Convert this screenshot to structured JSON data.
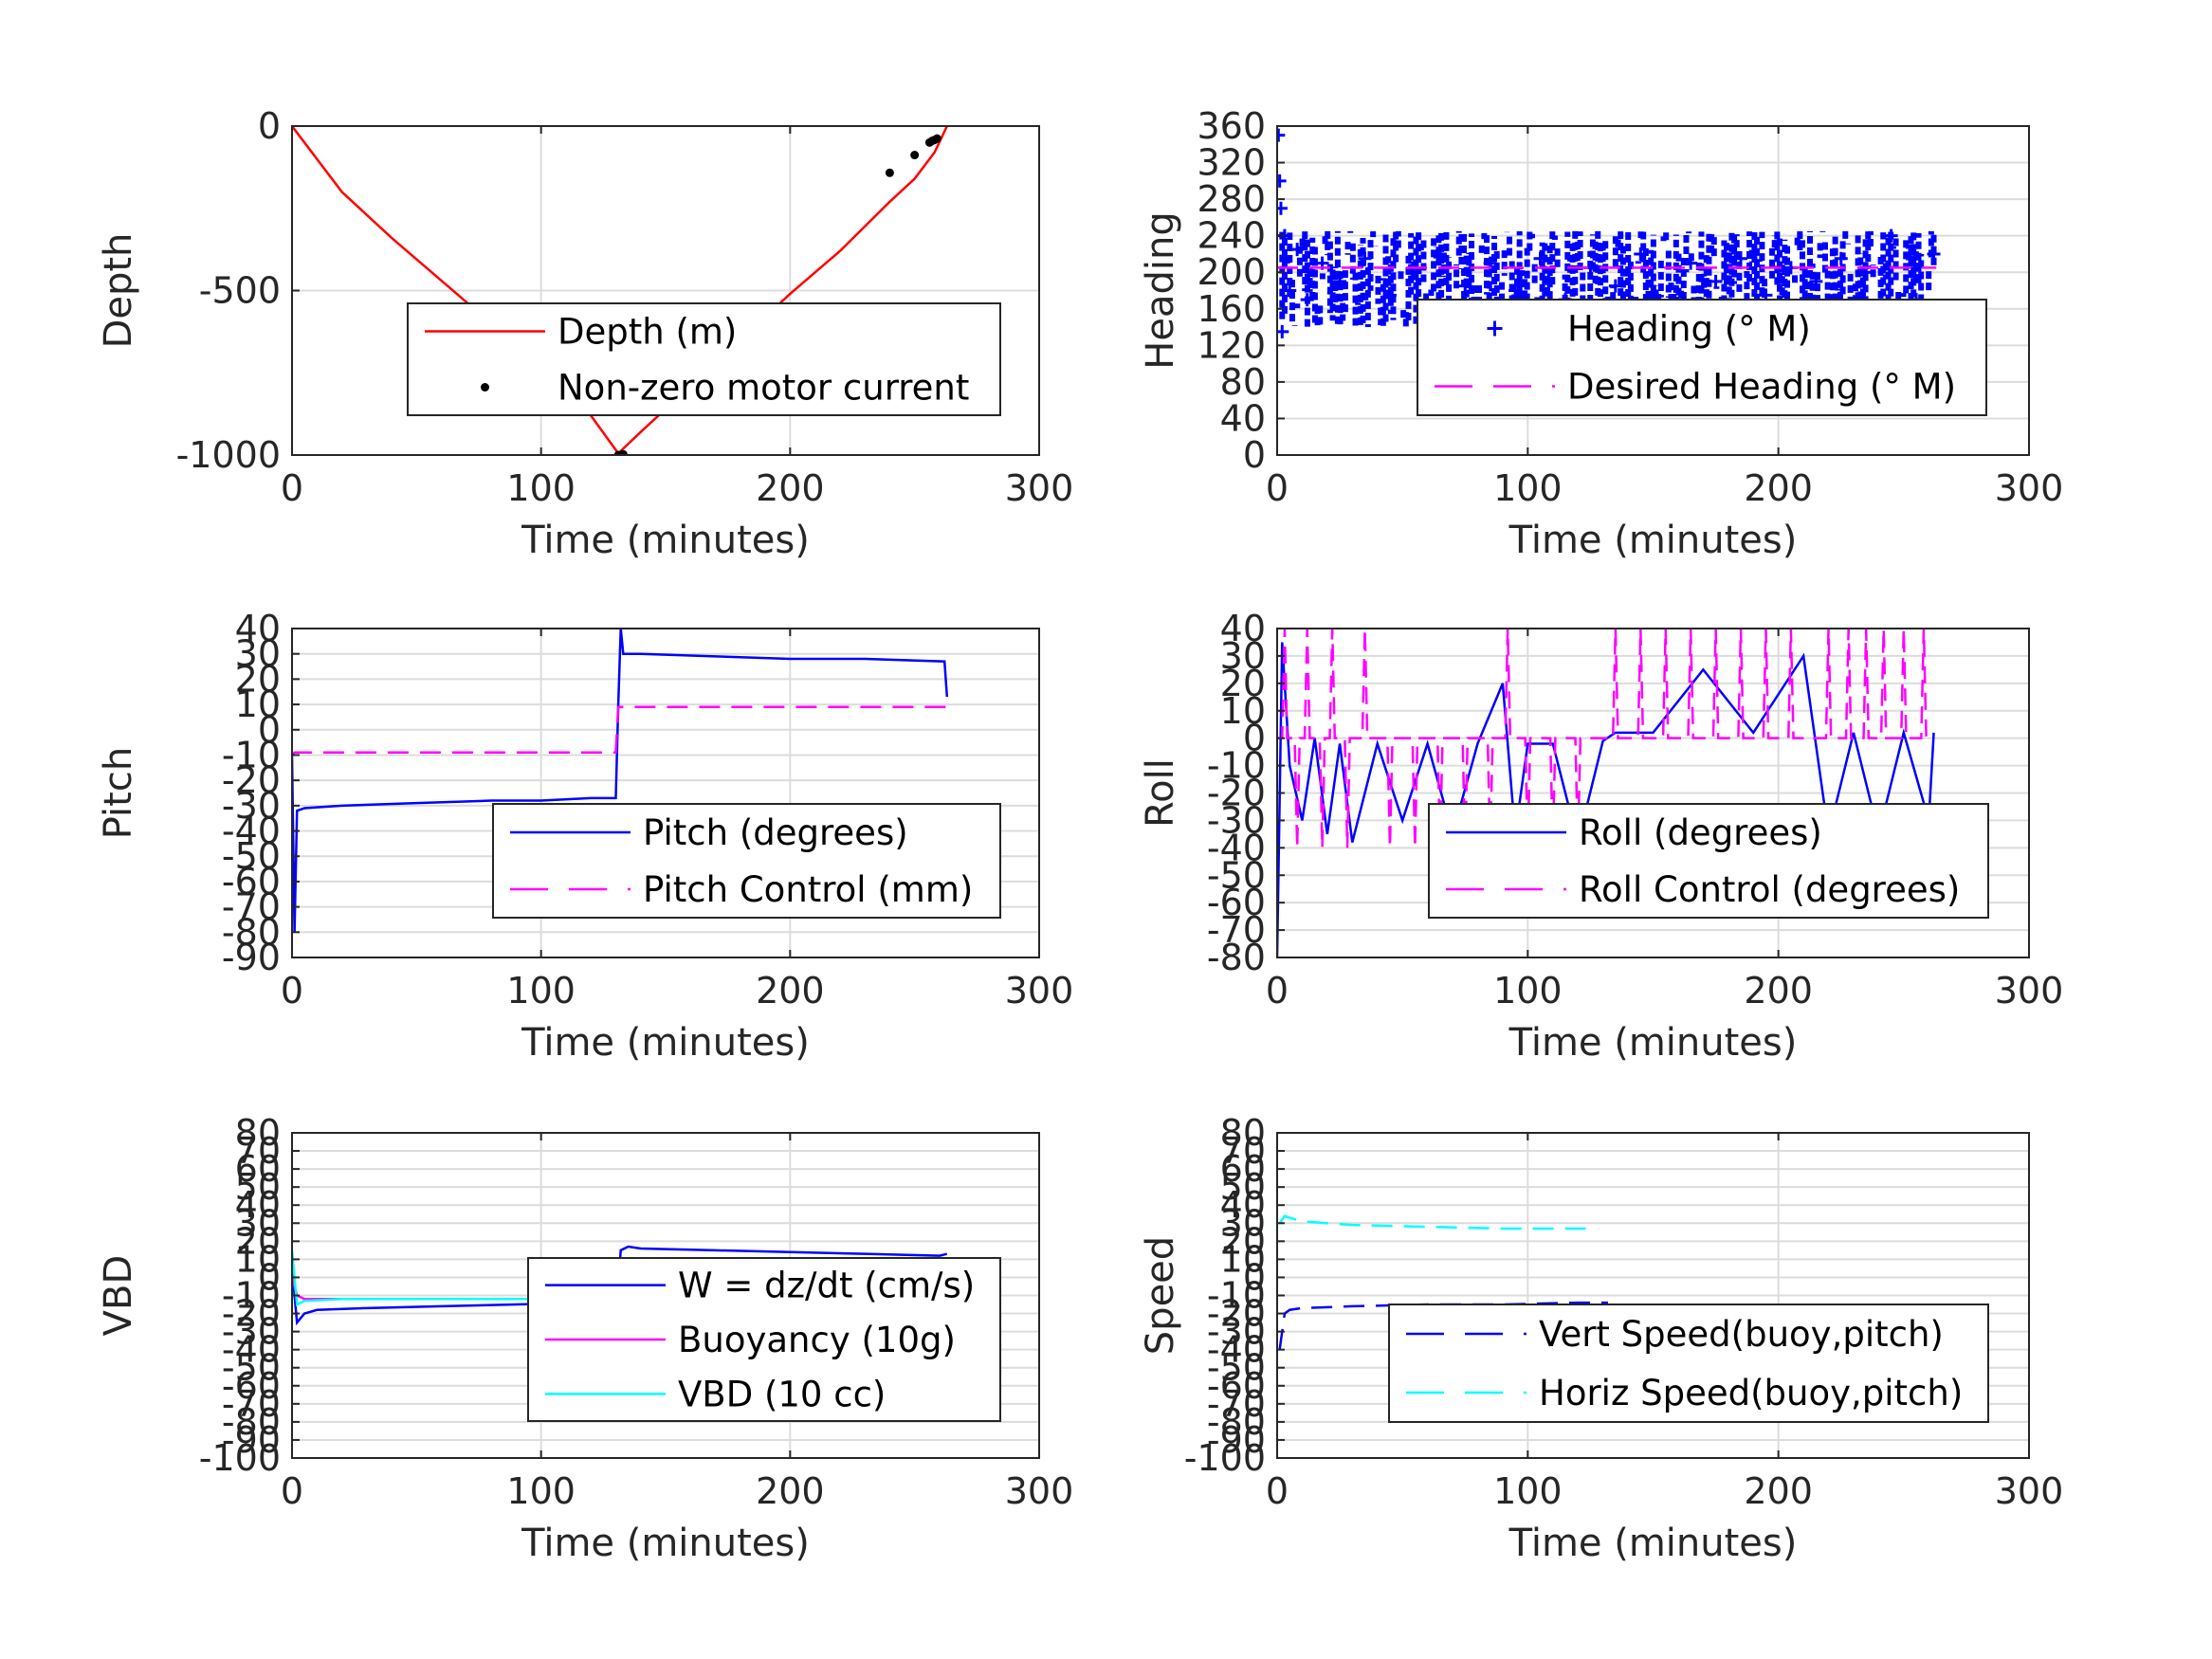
{
  "colors": {
    "depth": "#ff0000",
    "motor": "#000000",
    "heading": "#0000ff",
    "desired": "#ff00ff",
    "pitch": "#0000ff",
    "pitch_control": "#ff00ff",
    "roll": "#0000ff",
    "roll_control": "#ff00ff",
    "w": "#0000ff",
    "buoyancy": "#ff00ff",
    "vbd": "#00ffff",
    "vert_speed": "#0000ff",
    "horiz_speed": "#00ffff",
    "grid": "#dcdcdc",
    "axis": "#262626"
  },
  "chart_data": [
    {
      "id": "depth",
      "type": "line",
      "xlabel": "Time (minutes)",
      "ylabel": "Depth",
      "xlim": [
        0,
        300
      ],
      "ylim": [
        -1000,
        0
      ],
      "xticks": [
        "0",
        "100",
        "200",
        "300"
      ],
      "yticks": [
        "0",
        "-500",
        "-1000"
      ],
      "ytick_values": [
        0,
        -500,
        -1000
      ],
      "grid": true,
      "legend_position": "center-right",
      "legend": [
        "Depth (m)",
        "Non-zero motor current"
      ],
      "series": [
        {
          "name": "Depth (m)",
          "style": "solid",
          "color_key": "depth",
          "x": [
            0,
            20,
            40,
            60,
            80,
            100,
            120,
            131,
            140,
            160,
            180,
            200,
            220,
            240,
            250,
            258,
            263
          ],
          "y": [
            0,
            -200,
            -340,
            -470,
            -600,
            -730,
            -880,
            -995,
            -930,
            -790,
            -650,
            -510,
            -380,
            -230,
            -160,
            -80,
            0
          ]
        },
        {
          "name": "Non-zero motor current",
          "style": "points",
          "color_key": "motor",
          "x": [
            131,
            132,
            133,
            240,
            250,
            256,
            257,
            258,
            259
          ],
          "y": [
            -1000,
            -1000,
            -998,
            -142,
            -88,
            -50,
            -45,
            -42,
            -38
          ]
        }
      ]
    },
    {
      "id": "heading",
      "type": "scatter",
      "xlabel": "Time (minutes)",
      "ylabel": "Heading",
      "xlim": [
        0,
        300
      ],
      "ylim": [
        0,
        360
      ],
      "xticks": [
        "0",
        "100",
        "200",
        "300"
      ],
      "yticks": [
        "360",
        "320",
        "280",
        "240",
        "200",
        "160",
        "120",
        "80",
        "40",
        "0"
      ],
      "ytick_values": [
        360,
        320,
        280,
        240,
        200,
        160,
        120,
        80,
        40,
        0
      ],
      "grid": true,
      "legend_position": "lower-right",
      "legend": [
        "Heading (° M)",
        "Desired Heading (° M)"
      ],
      "series": [
        {
          "name": "Heading (° M)",
          "style": "plus",
          "color_key": "heading",
          "x": [
            0.5,
            1,
            1.5,
            2,
            3,
            5,
            8,
            12,
            18,
            25,
            35,
            45,
            55,
            65,
            75,
            85,
            95,
            105,
            115,
            125,
            135,
            145,
            155,
            165,
            175,
            185,
            195,
            205,
            215,
            225,
            235,
            245,
            255,
            262
          ],
          "y": [
            350,
            300,
            270,
            135,
            240,
            180,
            225,
            170,
            210,
            190,
            215,
            175,
            200,
            220,
            185,
            210,
            180,
            215,
            170,
            205,
            185,
            220,
            160,
            210,
            190,
            215,
            175,
            205,
            190,
            215,
            200,
            240,
            170,
            220
          ]
        },
        {
          "name": "Desired Heading (° M)",
          "style": "dashed",
          "color_key": "desired",
          "x": [
            0,
            263
          ],
          "y": [
            205,
            205
          ]
        }
      ],
      "note_range": {
        "min": 140,
        "max": 245
      }
    },
    {
      "id": "pitch",
      "type": "line",
      "xlabel": "Time (minutes)",
      "ylabel": "Pitch",
      "xlim": [
        0,
        300
      ],
      "ylim": [
        -90,
        40
      ],
      "xticks": [
        "0",
        "100",
        "200",
        "300"
      ],
      "yticks": [
        "40",
        "30",
        "20",
        "10",
        "0",
        "-10",
        "-20",
        "-30",
        "-40",
        "-50",
        "-60",
        "-70",
        "-80",
        "-90"
      ],
      "ytick_values": [
        40,
        30,
        20,
        10,
        0,
        -10,
        -20,
        -30,
        -40,
        -50,
        -60,
        -70,
        -80,
        -90
      ],
      "grid": true,
      "legend_position": "lower-right",
      "legend": [
        "Pitch (degrees)",
        "Pitch Control (mm)"
      ],
      "series": [
        {
          "name": "Pitch (degrees)",
          "style": "solid",
          "color_key": "pitch",
          "x": [
            0,
            1,
            2,
            5,
            20,
            50,
            80,
            100,
            120,
            130,
            131,
            132,
            133,
            140,
            170,
            200,
            230,
            262,
            263
          ],
          "y": [
            -10,
            -80,
            -32,
            -31,
            -30,
            -29,
            -28,
            -28,
            -27,
            -27,
            10,
            40,
            30,
            30,
            29,
            28,
            28,
            27,
            13
          ]
        },
        {
          "name": "Pitch Control (mm)",
          "style": "dashed",
          "color_key": "pitch_control",
          "x": [
            0,
            1,
            130,
            131,
            132,
            263
          ],
          "y": [
            -10,
            -9,
            -9,
            9,
            9,
            9
          ]
        }
      ]
    },
    {
      "id": "roll",
      "type": "line",
      "xlabel": "Time (minutes)",
      "ylabel": "Roll",
      "xlim": [
        0,
        300
      ],
      "ylim": [
        -80,
        40
      ],
      "xticks": [
        "0",
        "100",
        "200",
        "300"
      ],
      "yticks": [
        "40",
        "30",
        "20",
        "10",
        "0",
        "-10",
        "-20",
        "-30",
        "-40",
        "-50",
        "-60",
        "-70",
        "-80"
      ],
      "ytick_values": [
        40,
        30,
        20,
        10,
        0,
        -10,
        -20,
        -30,
        -40,
        -50,
        -60,
        -70,
        -80
      ],
      "grid": true,
      "legend_position": "lower-right",
      "legend": [
        "Roll (degrees)",
        "Roll Control (degrees)"
      ],
      "series": [
        {
          "name": "Roll (degrees)",
          "style": "solid",
          "color_key": "roll",
          "x": [
            0,
            2,
            5,
            10,
            15,
            20,
            25,
            30,
            40,
            50,
            60,
            70,
            80,
            90,
            95,
            100,
            110,
            120,
            130,
            135,
            150,
            170,
            190,
            210,
            220,
            230,
            240,
            250,
            260,
            262
          ],
          "y": [
            -80,
            35,
            -10,
            -30,
            0,
            -35,
            -2,
            -38,
            -2,
            -30,
            -2,
            -35,
            -2,
            20,
            -35,
            -2,
            -2,
            -38,
            -1,
            2,
            2,
            25,
            2,
            30,
            -35,
            2,
            -35,
            2,
            -30,
            2
          ]
        },
        {
          "name": "Roll Control (degrees)",
          "style": "dashed",
          "color_key": "roll_control",
          "spikes_x": [
            3,
            8,
            12,
            18,
            22,
            28,
            35,
            45,
            55,
            65,
            75,
            85,
            92,
            100,
            110,
            120,
            135,
            145,
            155,
            165,
            175,
            185,
            195,
            205,
            220,
            228,
            235,
            242,
            250,
            258
          ],
          "spikes_y": [
            40,
            -40,
            40,
            -40,
            40,
            -40,
            40,
            -40,
            -40,
            -40,
            -40,
            -40,
            40,
            -40,
            -40,
            -40,
            40,
            40,
            40,
            40,
            40,
            40,
            40,
            40,
            40,
            40,
            40,
            40,
            40,
            40
          ],
          "baseline": 0
        }
      ]
    },
    {
      "id": "vbd",
      "type": "line",
      "xlabel": "Time (minutes)",
      "ylabel": "VBD",
      "xlim": [
        0,
        300
      ],
      "ylim": [
        -100,
        80
      ],
      "xticks": [
        "0",
        "100",
        "200",
        "300"
      ],
      "yticks": [
        "80",
        "70",
        "60",
        "50",
        "40",
        "30",
        "20",
        "10",
        "0",
        "-10",
        "-20",
        "-30",
        "-40",
        "-50",
        "-60",
        "-70",
        "-80",
        "-90",
        "-100"
      ],
      "ytick_values": [
        80,
        70,
        60,
        50,
        40,
        30,
        20,
        10,
        0,
        -10,
        -20,
        -30,
        -40,
        -50,
        -60,
        -70,
        -80,
        -90,
        -100
      ],
      "grid": true,
      "legend_position": "lower-right",
      "legend": [
        "W = dz/dt (cm/s)",
        "Buoyancy (10g)",
        "VBD (10 cc)"
      ],
      "series": [
        {
          "name": "W = dz/dt (cm/s)",
          "style": "solid",
          "color_key": "w",
          "x": [
            0,
            1,
            2,
            5,
            10,
            30,
            60,
            90,
            120,
            130,
            131,
            132,
            135,
            140,
            170,
            200,
            230,
            260,
            263
          ],
          "y": [
            10,
            -10,
            -25,
            -20,
            -18,
            -17,
            -16,
            -15,
            -14,
            -14,
            -3,
            15,
            17,
            16,
            15,
            14,
            13,
            12,
            13
          ]
        },
        {
          "name": "Buoyancy (10g)",
          "style": "solid",
          "color_key": "buoyancy",
          "x": [
            0,
            2,
            5,
            20,
            60,
            100,
            130,
            131,
            132,
            140,
            200,
            263
          ],
          "y": [
            0,
            -10,
            -12,
            -12,
            -12,
            -12,
            -12,
            8,
            10,
            10,
            10,
            10
          ]
        },
        {
          "name": "VBD (10 cc)",
          "style": "solid",
          "color_key": "vbd",
          "x": [
            0,
            1,
            2,
            5,
            20,
            60,
            100,
            130,
            131,
            132,
            140,
            200,
            250,
            263
          ],
          "y": [
            15,
            0,
            -15,
            -13,
            -12,
            -12,
            -12,
            -12,
            0,
            10,
            10,
            10,
            10,
            10
          ]
        }
      ]
    },
    {
      "id": "speed",
      "type": "line",
      "xlabel": "Time (minutes)",
      "ylabel": "Speed",
      "xlim": [
        0,
        300
      ],
      "ylim": [
        -100,
        80
      ],
      "xticks": [
        "0",
        "100",
        "200",
        "300"
      ],
      "yticks": [
        "80",
        "70",
        "60",
        "50",
        "40",
        "30",
        "20",
        "10",
        "0",
        "-10",
        "-20",
        "-30",
        "-40",
        "-50",
        "-60",
        "-70",
        "-80",
        "-90",
        "-100"
      ],
      "ytick_values": [
        80,
        70,
        60,
        50,
        40,
        30,
        20,
        10,
        0,
        -10,
        -20,
        -30,
        -40,
        -50,
        -60,
        -70,
        -80,
        -90,
        -100
      ],
      "grid": true,
      "legend_position": "lower-right",
      "legend": [
        "Vert Speed(buoy,pitch)",
        "Horiz Speed(buoy,pitch)"
      ],
      "series": [
        {
          "name": "Vert Speed(buoy,pitch)",
          "style": "dashed",
          "color_key": "vert_speed",
          "x": [
            1,
            2,
            3,
            5,
            10,
            30,
            60,
            90,
            120,
            132
          ],
          "y": [
            -40,
            -30,
            -20,
            -18,
            -17,
            -16,
            -15,
            -15,
            -14,
            -14
          ]
        },
        {
          "name": "Horiz Speed(buoy,pitch)",
          "style": "dashed",
          "color_key": "horiz_speed",
          "x": [
            1,
            3,
            5,
            10,
            30,
            60,
            90,
            120,
            125
          ],
          "y": [
            30,
            34,
            33,
            31,
            29,
            28,
            27,
            27,
            27
          ]
        }
      ]
    }
  ]
}
